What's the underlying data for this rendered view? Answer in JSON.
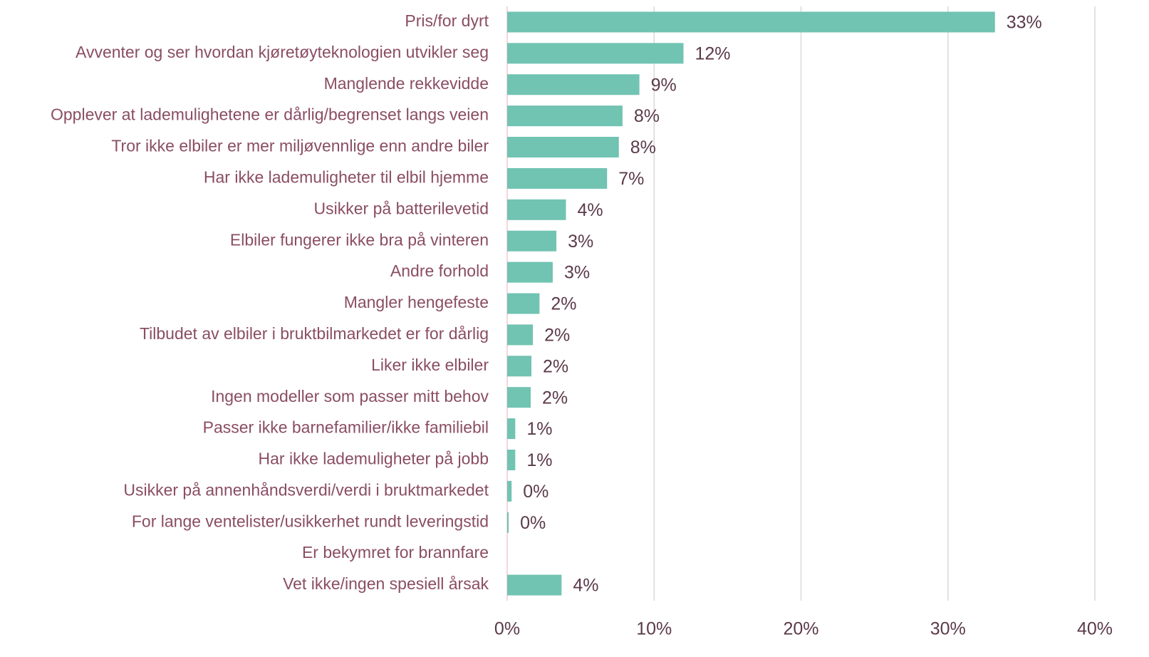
{
  "chart_data": {
    "type": "barh",
    "categories": [
      "Pris/for dyrt",
      "Avventer og ser hvordan kjøretøyteknologien utvikler seg",
      "Manglende rekkevidde",
      "Opplever at lademulighetene er dårlig/begrenset langs veien",
      "Tror ikke elbiler er mer miljøvennlige enn andre biler",
      "Har ikke lademuligheter til elbil hjemme",
      "Usikker på batterilevetid",
      "Elbiler fungerer ikke bra på vinteren",
      "Andre forhold",
      "Mangler hengefeste",
      "Tilbudet av elbiler i bruktbilmarkedet er for dårlig",
      "Liker ikke elbiler",
      "Ingen modeller som passer mitt behov",
      "Passer ikke barnefamilier/ikke familiebil",
      "Har ikke lademuligheter på jobb",
      "Usikker på annenhåndsverdi/verdi i bruktmarkedet",
      "For lange ventelister/usikkerhet rundt leveringstid",
      "Er bekymret for brannfare",
      "Vet ikke/ingen spesiell årsak"
    ],
    "values": [
      33.2,
      12.0,
      9.0,
      7.85,
      7.6,
      6.8,
      4.0,
      3.35,
      3.1,
      2.2,
      1.75,
      1.65,
      1.6,
      0.55,
      0.55,
      0.3,
      0.1,
      0,
      3.7
    ],
    "value_labels": [
      "33%",
      "12%",
      "9%",
      "8%",
      "8%",
      "7%",
      "4%",
      "3%",
      "3%",
      "2%",
      "2%",
      "2%",
      "2%",
      "1%",
      "1%",
      "0%",
      "0%",
      null,
      "4%"
    ],
    "color": "#71c3b2",
    "xlim": [
      0,
      40
    ],
    "xticks": [
      {
        "value": 0,
        "label": "0%"
      },
      {
        "value": 10,
        "label": "10%"
      },
      {
        "value": 20,
        "label": "20%"
      },
      {
        "value": 30,
        "label": "30%"
      },
      {
        "value": 40,
        "label": "40%"
      }
    ],
    "grid": true
  }
}
